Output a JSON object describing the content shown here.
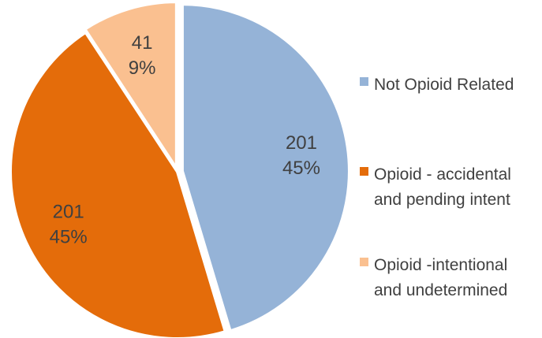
{
  "chart_data": {
    "type": "pie",
    "title": "",
    "legend_position": "right",
    "slices": [
      {
        "name": "Not Opioid Related",
        "legend_lines": [
          "Not Opioid Related"
        ],
        "value": 201,
        "percent_label": "45%",
        "color": "#95B3D7"
      },
      {
        "name": "Opioid - accidental and pending intent",
        "legend_lines": [
          "Opioid - accidental",
          "and pending intent"
        ],
        "value": 201,
        "percent_label": "45%",
        "color": "#E46C0A"
      },
      {
        "name": "Opioid -intentional and undetermined",
        "legend_lines": [
          "Opioid -intentional",
          "and undetermined"
        ],
        "value": 41,
        "percent_label": "9%",
        "color": "#FAC090"
      }
    ]
  }
}
